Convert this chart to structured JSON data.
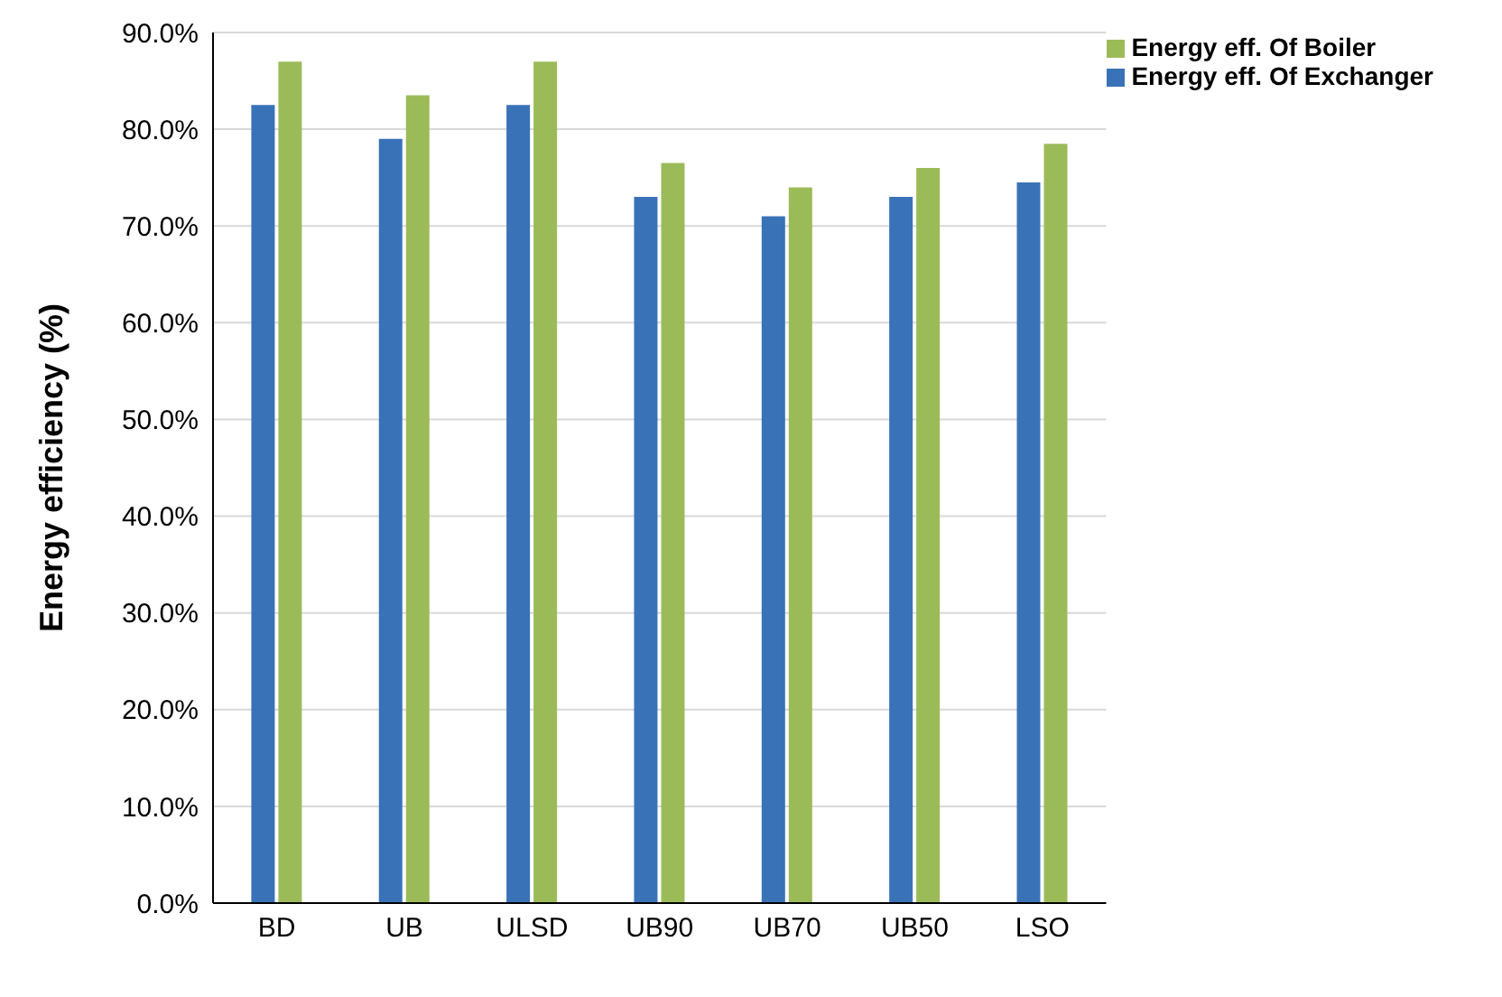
{
  "chart_data": {
    "type": "bar",
    "ylabel": "Energy efficiency (%)",
    "categories": [
      "BD",
      "UB",
      "ULSD",
      "UB90",
      "UB70",
      "UB50",
      "LSO"
    ],
    "series": [
      {
        "name": "Energy eff. Of Exchanger",
        "color": "#3a72b8",
        "values": [
          82.5,
          79,
          82.5,
          73,
          71,
          73,
          74.5
        ]
      },
      {
        "name": "Energy eff. Of Boiler",
        "color": "#9bbb59",
        "values": [
          87,
          83.5,
          87,
          76.5,
          74,
          76,
          78.5
        ]
      }
    ],
    "ylim": [
      0,
      90
    ],
    "yticks": [
      {
        "value": 0,
        "label": "0.0%"
      },
      {
        "value": 10,
        "label": "10.0%"
      },
      {
        "value": 20,
        "label": "20.0%"
      },
      {
        "value": 30,
        "label": "30.0%"
      },
      {
        "value": 40,
        "label": "40.0%"
      },
      {
        "value": 50,
        "label": "50.0%"
      },
      {
        "value": 60,
        "label": "60.0%"
      },
      {
        "value": 70,
        "label": "70.0%"
      },
      {
        "value": 80,
        "label": "80.0%"
      },
      {
        "value": 90,
        "label": "90.0%"
      }
    ],
    "grid": "y",
    "legend": "top right"
  }
}
